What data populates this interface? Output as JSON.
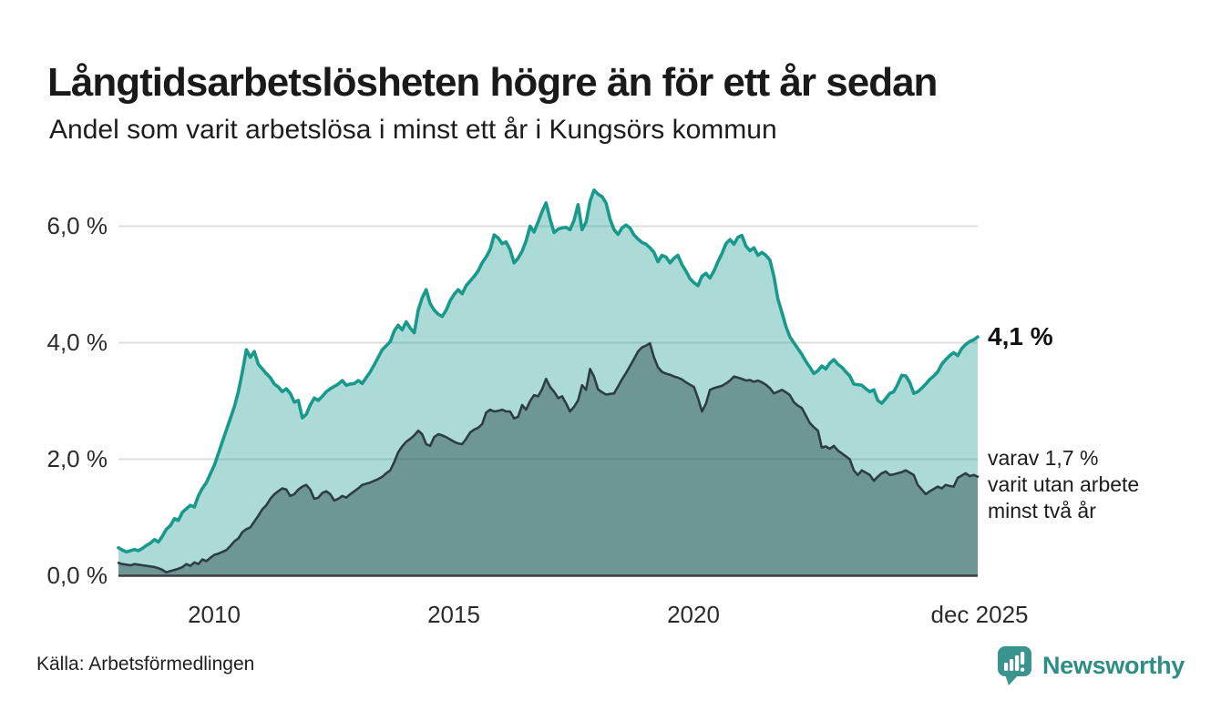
{
  "header": {
    "title": "Långtidsarbetslösheten högre än för ett år sedan",
    "subtitle": "Andel som varit arbetslösa i minst ett år i Kungsörs kommun"
  },
  "annotations": {
    "latest_total_label": "4,1 %",
    "latest_total_value": 4.1,
    "two_year_line1": "varav 1,7 %",
    "two_year_line2": "varit utan arbete",
    "two_year_line3": "minst två år",
    "two_year_value": 1.7
  },
  "footer": {
    "source": "Källa: Arbetsförmedlingen",
    "brand": "Newsworthy"
  },
  "colors": {
    "accent_teal": "#18998c",
    "dark_slate": "#2d3e43",
    "brand_teal": "#3a948d",
    "grid": "#dedede",
    "baseline": "#3f3f3f"
  },
  "chart_data": {
    "type": "area",
    "title": "Andel som varit arbetslösa i minst ett år i Kungsörs kommun",
    "unit": "%",
    "frequency": "monthly",
    "x_start": "2008-01",
    "x_end": "2025-12",
    "x_ticks": [
      "2010",
      "2015",
      "2020",
      "dec 2025"
    ],
    "x_tick_indices": [
      24,
      84,
      144,
      215
    ],
    "y_ticks": [
      "6,0 %",
      "4,0 %",
      "2,0 %",
      "0,0 %"
    ],
    "y_tick_values": [
      6.0,
      4.0,
      2.0,
      0.0
    ],
    "ylim": [
      0,
      6.8
    ],
    "grid": "horizontal",
    "legend_position": "none",
    "series": [
      {
        "name": "Arbetslösa minst ett år",
        "color": "#18998c",
        "fill": "rgba(24,153,140,0.36)",
        "stroke_width": 3.6,
        "values": [
          0.48,
          0.44,
          0.41,
          0.43,
          0.45,
          0.43,
          0.47,
          0.52,
          0.56,
          0.62,
          0.58,
          0.68,
          0.8,
          0.86,
          0.98,
          0.95,
          1.09,
          1.15,
          1.21,
          1.18,
          1.37,
          1.5,
          1.6,
          1.75,
          1.9,
          2.1,
          2.3,
          2.5,
          2.7,
          2.9,
          3.16,
          3.5,
          3.88,
          3.75,
          3.85,
          3.63,
          3.55,
          3.47,
          3.4,
          3.29,
          3.24,
          3.16,
          3.21,
          3.13,
          2.98,
          3.01,
          2.71,
          2.77,
          2.93,
          3.05,
          3.01,
          3.08,
          3.16,
          3.21,
          3.25,
          3.29,
          3.35,
          3.27,
          3.29,
          3.3,
          3.35,
          3.3,
          3.4,
          3.5,
          3.62,
          3.75,
          3.88,
          3.95,
          4.02,
          4.2,
          4.3,
          4.22,
          4.36,
          4.25,
          4.17,
          4.56,
          4.77,
          4.91,
          4.67,
          4.56,
          4.49,
          4.45,
          4.56,
          4.72,
          4.83,
          4.91,
          4.84,
          4.98,
          5.06,
          5.14,
          5.23,
          5.37,
          5.47,
          5.6,
          5.85,
          5.8,
          5.7,
          5.73,
          5.6,
          5.37,
          5.45,
          5.57,
          5.75,
          6.0,
          5.9,
          6.07,
          6.25,
          6.4,
          6.12,
          5.89,
          5.95,
          5.97,
          5.98,
          5.94,
          6.1,
          6.37,
          5.94,
          6.07,
          6.43,
          6.62,
          6.55,
          6.51,
          6.4,
          6.12,
          5.94,
          5.86,
          5.97,
          6.02,
          5.97,
          5.85,
          5.78,
          5.72,
          5.69,
          5.63,
          5.55,
          5.39,
          5.5,
          5.47,
          5.37,
          5.45,
          5.5,
          5.34,
          5.23,
          5.1,
          5.03,
          4.98,
          5.14,
          5.19,
          5.11,
          5.23,
          5.39,
          5.53,
          5.7,
          5.77,
          5.69,
          5.81,
          5.84,
          5.66,
          5.58,
          5.63,
          5.5,
          5.55,
          5.5,
          5.42,
          5.14,
          4.75,
          4.52,
          4.28,
          4.1,
          4.0,
          3.9,
          3.8,
          3.68,
          3.58,
          3.47,
          3.52,
          3.6,
          3.55,
          3.65,
          3.71,
          3.63,
          3.58,
          3.5,
          3.43,
          3.29,
          3.28,
          3.27,
          3.21,
          3.16,
          3.19,
          3.01,
          2.96,
          3.04,
          3.13,
          3.16,
          3.29,
          3.44,
          3.43,
          3.32,
          3.13,
          3.16,
          3.22,
          3.29,
          3.37,
          3.43,
          3.5,
          3.63,
          3.71,
          3.78,
          3.83,
          3.78,
          3.9,
          3.97,
          4.02,
          4.05,
          4.1
        ]
      },
      {
        "name": "Arbetslösa minst två år",
        "color": "#2d3e43",
        "fill": "rgba(40,75,75,0.48)",
        "stroke_width": 2.6,
        "values": [
          0.22,
          0.2,
          0.19,
          0.18,
          0.2,
          0.19,
          0.18,
          0.17,
          0.16,
          0.15,
          0.13,
          0.1,
          0.06,
          0.08,
          0.1,
          0.12,
          0.15,
          0.2,
          0.17,
          0.23,
          0.2,
          0.28,
          0.25,
          0.31,
          0.36,
          0.38,
          0.41,
          0.44,
          0.51,
          0.59,
          0.64,
          0.75,
          0.8,
          0.83,
          0.93,
          1.03,
          1.14,
          1.21,
          1.32,
          1.4,
          1.45,
          1.5,
          1.48,
          1.37,
          1.4,
          1.48,
          1.53,
          1.56,
          1.48,
          1.32,
          1.34,
          1.42,
          1.45,
          1.4,
          1.29,
          1.32,
          1.37,
          1.34,
          1.4,
          1.45,
          1.5,
          1.56,
          1.58,
          1.6,
          1.63,
          1.66,
          1.7,
          1.76,
          1.81,
          1.95,
          2.12,
          2.22,
          2.3,
          2.35,
          2.41,
          2.49,
          2.43,
          2.26,
          2.23,
          2.38,
          2.43,
          2.41,
          2.38,
          2.34,
          2.3,
          2.27,
          2.26,
          2.35,
          2.46,
          2.51,
          2.54,
          2.6,
          2.8,
          2.85,
          2.82,
          2.83,
          2.85,
          2.82,
          2.82,
          2.7,
          2.73,
          2.93,
          2.85,
          3.0,
          3.1,
          3.08,
          3.2,
          3.38,
          3.24,
          3.16,
          3.05,
          3.08,
          2.96,
          2.82,
          2.9,
          3.01,
          3.27,
          3.19,
          3.55,
          3.42,
          3.2,
          3.15,
          3.11,
          3.12,
          3.13,
          3.25,
          3.37,
          3.48,
          3.6,
          3.72,
          3.85,
          3.92,
          3.95,
          3.99,
          3.75,
          3.58,
          3.5,
          3.47,
          3.45,
          3.42,
          3.4,
          3.37,
          3.32,
          3.28,
          3.24,
          3.05,
          2.82,
          2.95,
          3.19,
          3.22,
          3.24,
          3.26,
          3.3,
          3.35,
          3.42,
          3.4,
          3.38,
          3.35,
          3.36,
          3.33,
          3.35,
          3.32,
          3.28,
          3.22,
          3.13,
          3.16,
          3.19,
          3.15,
          3.1,
          2.98,
          2.92,
          2.88,
          2.75,
          2.62,
          2.55,
          2.49,
          2.2,
          2.22,
          2.18,
          2.23,
          2.15,
          2.1,
          2.05,
          2.0,
          1.81,
          1.73,
          1.81,
          1.77,
          1.73,
          1.63,
          1.7,
          1.76,
          1.79,
          1.73,
          1.74,
          1.76,
          1.78,
          1.81,
          1.77,
          1.73,
          1.56,
          1.48,
          1.4,
          1.45,
          1.49,
          1.53,
          1.5,
          1.56,
          1.54,
          1.53,
          1.68,
          1.72,
          1.76,
          1.71,
          1.73,
          1.7
        ]
      }
    ]
  }
}
